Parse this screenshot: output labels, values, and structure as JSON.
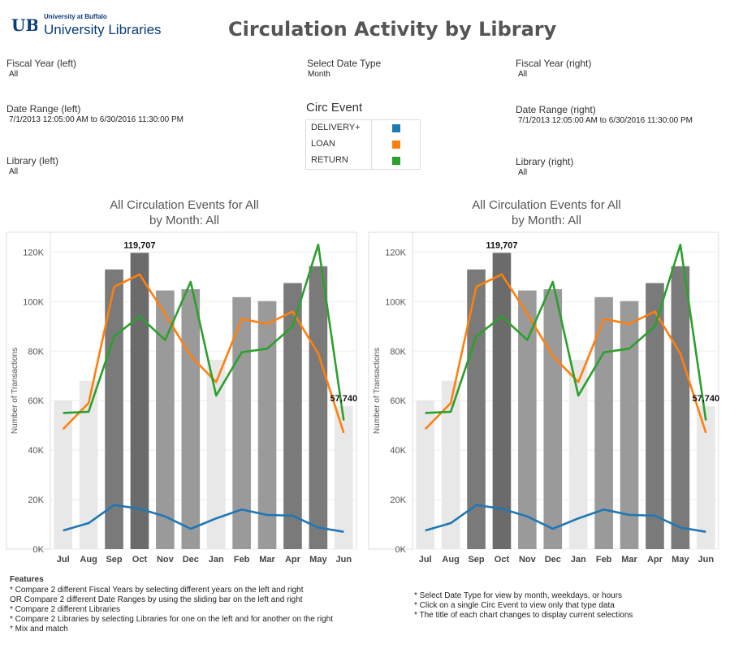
{
  "header": {
    "logo_small": "University at Buffalo",
    "logo_big": "University Libraries",
    "title": "Circulation Activity by Library"
  },
  "filters": {
    "fiscal_year_left": {
      "label": "Fiscal Year (left)",
      "value": "All"
    },
    "date_type": {
      "label": "Select Date Type",
      "value": "Month"
    },
    "fiscal_year_right": {
      "label": "Fiscal Year (right)",
      "value": "All"
    },
    "date_range_left": {
      "label": "Date Range (left)",
      "value": "7/1/2013 12:05:00 AM to 6/30/2016 11:30:00 PM"
    },
    "date_range_right": {
      "label": "Date Range (right)",
      "value": "7/1/2013 12:05:00 AM to 6/30/2016 11:30:00 PM"
    },
    "library_left": {
      "label": "Library (left)",
      "value": "All"
    },
    "library_right": {
      "label": "Library (right)",
      "value": "All"
    }
  },
  "legend": {
    "title": "Circ Event",
    "items": [
      {
        "label": "DELIVERY+",
        "color": "#1f77b4"
      },
      {
        "label": "LOAN",
        "color": "#ff7f0e"
      },
      {
        "label": "RETURN",
        "color": "#2ca02c"
      }
    ]
  },
  "charts": {
    "left": {
      "title_line1": "All Circulation Events for All",
      "title_line2": "by Month:  All"
    },
    "right": {
      "title_line1": "All Circulation Events for All",
      "title_line2": "by Month:  All"
    }
  },
  "chart_data": {
    "type": "bar",
    "categories": [
      "Jul",
      "Aug",
      "Sep",
      "Oct",
      "Nov",
      "Dec",
      "Jan",
      "Feb",
      "Mar",
      "Apr",
      "May",
      "Jun"
    ],
    "ylabel": "Number of Transactions",
    "ylim": [
      0,
      128000
    ],
    "yticks": [
      0,
      20000,
      40000,
      60000,
      80000,
      100000,
      120000
    ],
    "ytick_labels": [
      "0K",
      "20K",
      "40K",
      "60K",
      "80K",
      "100K",
      "120K"
    ],
    "bars": {
      "values": [
        60000,
        68000,
        113000,
        119707,
        104500,
        105000,
        76500,
        101800,
        100200,
        107500,
        114300,
        57740
      ],
      "colors": [
        "#e8e8e8",
        "#e8e8e8",
        "#7a7a7a",
        "#6b6b6b",
        "#9a9a9a",
        "#9a9a9a",
        "#e8e8e8",
        "#9a9a9a",
        "#9a9a9a",
        "#7a7a7a",
        "#7a7a7a",
        "#e8e8e8"
      ],
      "data_labels": [
        {
          "index": 3,
          "text": "119,707"
        },
        {
          "index": 11,
          "text": "57,740"
        }
      ]
    },
    "series": [
      {
        "name": "DELIVERY+",
        "values": [
          7500,
          10500,
          17800,
          16300,
          13200,
          8200,
          12400,
          16000,
          13800,
          13500,
          8700,
          7000
        ]
      },
      {
        "name": "LOAN",
        "values": [
          48500,
          59000,
          106000,
          111000,
          95000,
          78000,
          67500,
          93000,
          91000,
          96000,
          79000,
          47000
        ]
      },
      {
        "name": "RETURN",
        "values": [
          55000,
          55500,
          86000,
          94000,
          84500,
          108000,
          62000,
          79500,
          81000,
          90000,
          123000,
          52000
        ]
      }
    ],
    "grid": true
  },
  "features": {
    "title": "Features",
    "lines": [
      "* Compare 2 different Fiscal Years by selecting different years on the left and right",
      "OR Compare 2 different Date Ranges by using the sliding bar on the left and right",
      "* Compare 2 different Libraries",
      "* Compare 2 Libraries by selecting Libraries for one on the left and for another on the right",
      "* Mix and match"
    ]
  },
  "notes": {
    "lines": [
      "* Select Date Type for view by month, weekdays, or hours",
      "* Click on a single Circ Event to view only that type data",
      "* The title of each chart changes to display current selections"
    ]
  }
}
